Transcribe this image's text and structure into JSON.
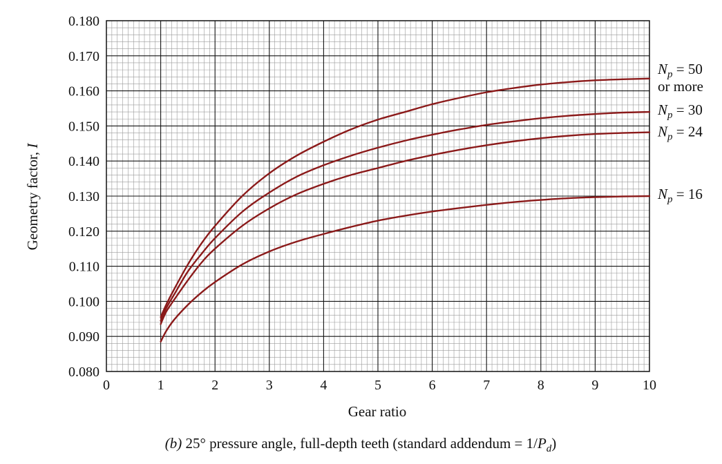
{
  "chart_data": {
    "type": "line",
    "xlabel": "Gear ratio",
    "ylabel_text": "Geometry factor, ",
    "ylabel_symbol": "I",
    "xlim": [
      0,
      10
    ],
    "ylim": [
      0.08,
      0.18
    ],
    "x_ticks": [
      "0",
      "1",
      "2",
      "3",
      "4",
      "5",
      "6",
      "7",
      "8",
      "9",
      "10"
    ],
    "y_ticks": [
      "0.080",
      "0.090",
      "0.100",
      "0.110",
      "0.120",
      "0.130",
      "0.140",
      "0.150",
      "0.160",
      "0.170",
      "0.180"
    ],
    "grid": true,
    "line_color": "#8b1a1a",
    "caption": {
      "part": "(b)",
      "text": " 25° pressure angle, full-depth teeth (standard addendum = 1/",
      "symbol": "P",
      "subscript": "d",
      "close": ")"
    },
    "series": [
      {
        "label": {
          "symbol": "N",
          "sub": "p",
          "rest": " = 50",
          "line2": "or more"
        },
        "points": [
          [
            1.0,
            0.0955
          ],
          [
            1.1,
            0.099
          ],
          [
            1.25,
            0.1035
          ],
          [
            1.5,
            0.1105
          ],
          [
            1.75,
            0.1165
          ],
          [
            2.0,
            0.1215
          ],
          [
            2.5,
            0.13
          ],
          [
            3.0,
            0.1365
          ],
          [
            3.5,
            0.1415
          ],
          [
            4.0,
            0.1455
          ],
          [
            4.5,
            0.149
          ],
          [
            5.0,
            0.1518
          ],
          [
            5.5,
            0.154
          ],
          [
            6.0,
            0.1562
          ],
          [
            6.5,
            0.158
          ],
          [
            7.0,
            0.1596
          ],
          [
            7.5,
            0.1608
          ],
          [
            8.0,
            0.1618
          ],
          [
            8.5,
            0.1625
          ],
          [
            9.0,
            0.163
          ],
          [
            9.5,
            0.1633
          ],
          [
            10.0,
            0.1635
          ]
        ]
      },
      {
        "label": {
          "symbol": "N",
          "sub": "p",
          "rest": " = 30"
        },
        "points": [
          [
            1.0,
            0.0945
          ],
          [
            1.1,
            0.098
          ],
          [
            1.25,
            0.102
          ],
          [
            1.5,
            0.1085
          ],
          [
            1.75,
            0.1135
          ],
          [
            2.0,
            0.118
          ],
          [
            2.5,
            0.1255
          ],
          [
            3.0,
            0.131
          ],
          [
            3.5,
            0.1355
          ],
          [
            4.0,
            0.1388
          ],
          [
            4.5,
            0.1415
          ],
          [
            5.0,
            0.1438
          ],
          [
            5.5,
            0.1458
          ],
          [
            6.0,
            0.1475
          ],
          [
            6.5,
            0.149
          ],
          [
            7.0,
            0.1503
          ],
          [
            7.5,
            0.1513
          ],
          [
            8.0,
            0.1522
          ],
          [
            8.5,
            0.1529
          ],
          [
            9.0,
            0.1534
          ],
          [
            9.5,
            0.1538
          ],
          [
            10.0,
            0.154
          ]
        ]
      },
      {
        "label": {
          "symbol": "N",
          "sub": "p",
          "rest": " = 24"
        },
        "points": [
          [
            1.0,
            0.0935
          ],
          [
            1.1,
            0.097
          ],
          [
            1.25,
            0.1005
          ],
          [
            1.5,
            0.106
          ],
          [
            1.75,
            0.111
          ],
          [
            2.0,
            0.115
          ],
          [
            2.5,
            0.1215
          ],
          [
            3.0,
            0.1265
          ],
          [
            3.5,
            0.1305
          ],
          [
            4.0,
            0.1335
          ],
          [
            4.5,
            0.136
          ],
          [
            5.0,
            0.138
          ],
          [
            5.5,
            0.14
          ],
          [
            6.0,
            0.1417
          ],
          [
            6.5,
            0.1432
          ],
          [
            7.0,
            0.1445
          ],
          [
            7.5,
            0.1456
          ],
          [
            8.0,
            0.1465
          ],
          [
            8.5,
            0.1472
          ],
          [
            9.0,
            0.1477
          ],
          [
            9.5,
            0.148
          ],
          [
            10.0,
            0.1482
          ]
        ]
      },
      {
        "label": {
          "symbol": "N",
          "sub": "p",
          "rest": " = 16"
        },
        "points": [
          [
            1.0,
            0.0885
          ],
          [
            1.1,
            0.0915
          ],
          [
            1.25,
            0.0948
          ],
          [
            1.5,
            0.099
          ],
          [
            1.75,
            0.1025
          ],
          [
            2.0,
            0.1055
          ],
          [
            2.5,
            0.1105
          ],
          [
            3.0,
            0.1142
          ],
          [
            3.5,
            0.117
          ],
          [
            4.0,
            0.1192
          ],
          [
            4.5,
            0.1212
          ],
          [
            5.0,
            0.123
          ],
          [
            5.5,
            0.1244
          ],
          [
            6.0,
            0.1256
          ],
          [
            6.5,
            0.1266
          ],
          [
            7.0,
            0.1275
          ],
          [
            7.5,
            0.1283
          ],
          [
            8.0,
            0.1289
          ],
          [
            8.5,
            0.1294
          ],
          [
            9.0,
            0.1297
          ],
          [
            9.5,
            0.1299
          ],
          [
            10.0,
            0.13
          ]
        ]
      }
    ]
  }
}
